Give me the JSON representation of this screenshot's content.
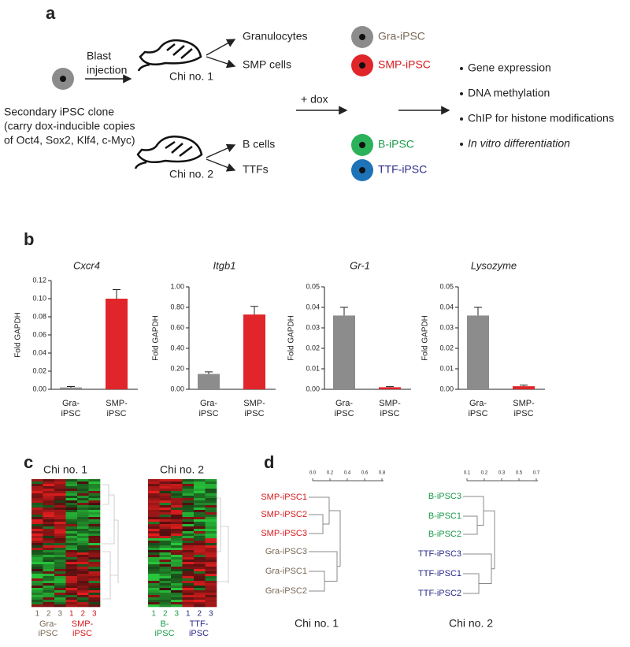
{
  "panel_a": {
    "label": "a",
    "clone_text": [
      "Secondary iPSC clone",
      "(carry dox-inducible copies",
      "of Oct4, Sox2, Klf4, c-Myc)"
    ],
    "injection": [
      "Blast",
      "injection"
    ],
    "chimeras": [
      {
        "name": "Chi no. 1",
        "cells": [
          "Granulocytes",
          "SMP cells"
        ],
        "ipsc": [
          "Gra-iPSC",
          "SMP-iPSC"
        ],
        "ipsc_colors": [
          "#8c8c8c",
          "#e0262a"
        ],
        "text_colors": [
          "#7a6a58",
          "#d7191c"
        ]
      },
      {
        "name": "Chi no. 2",
        "cells": [
          "B cells",
          "TTFs"
        ],
        "ipsc": [
          "B-iPSC",
          "TTF-iPSC"
        ],
        "ipsc_colors": [
          "#2bb15a",
          "#1e73b8"
        ],
        "text_colors": [
          "#1a9a4a",
          "#2a2a8a"
        ]
      }
    ],
    "treatment": "+ dox",
    "analyses": [
      "Gene expression",
      "DNA methylation",
      "ChIP for histone modifications",
      "In vitro differentiation"
    ]
  },
  "panel_b": {
    "label": "b"
  },
  "chart_data": [
    {
      "type": "bar",
      "title": "Cxcr4",
      "y_label": "Fold GAPDH",
      "categories": [
        "Gra- iPSC",
        "SMP- iPSC"
      ],
      "values": [
        0.002,
        0.1
      ],
      "errors": [
        0.001,
        0.01
      ],
      "colors": [
        "#8c8c8c",
        "#e0262a"
      ],
      "ylim": [
        0,
        0.12
      ],
      "yticks": [
        {
          "value": 0,
          "label": "0.00"
        },
        {
          "value": 0.02,
          "label": "0.02"
        },
        {
          "value": 0.04,
          "label": "0.04"
        },
        {
          "value": 0.06,
          "label": "0.06"
        },
        {
          "value": 0.08,
          "label": "0.08"
        },
        {
          "value": 0.1,
          "label": "0.10"
        },
        {
          "value": 0.12,
          "label": "0.12"
        }
      ]
    },
    {
      "type": "bar",
      "title": "Itgb1",
      "y_label": "Fold GAPDH",
      "categories": [
        "Gra- iPSC",
        "SMP- iPSC"
      ],
      "values": [
        0.15,
        0.73
      ],
      "errors": [
        0.02,
        0.08
      ],
      "colors": [
        "#8c8c8c",
        "#e0262a"
      ],
      "ylim": [
        0,
        1
      ],
      "yticks": [
        {
          "value": 0,
          "label": "0.00"
        },
        {
          "value": 0.2,
          "label": "0.20"
        },
        {
          "value": 0.4,
          "label": "0.40"
        },
        {
          "value": 0.6,
          "label": "0.60"
        },
        {
          "value": 0.8,
          "label": "0.80"
        },
        {
          "value": 1,
          "label": "1.00"
        }
      ]
    },
    {
      "type": "bar",
      "title": "Gr-1",
      "y_label": "Fold GAPDH",
      "categories": [
        "Gra- iPSC",
        "SMP- iPSC"
      ],
      "values": [
        0.036,
        0.001
      ],
      "errors": [
        0.004,
        0.0003
      ],
      "colors": [
        "#8c8c8c",
        "#e0262a"
      ],
      "ylim": [
        0,
        0.05
      ],
      "yticks": [
        {
          "value": 0,
          "label": "0.00"
        },
        {
          "value": 0.01,
          "label": "0.01"
        },
        {
          "value": 0.02,
          "label": "0.02"
        },
        {
          "value": 0.03,
          "label": "0.03"
        },
        {
          "value": 0.04,
          "label": "0.04"
        },
        {
          "value": 0.05,
          "label": "0.05"
        }
      ]
    },
    {
      "type": "bar",
      "title": "Lysozyme",
      "y_label": "Fold GAPDH",
      "categories": [
        "Gra- iPSC",
        "SMP- iPSC"
      ],
      "values": [
        0.036,
        0.0015
      ],
      "errors": [
        0.004,
        0.0005
      ],
      "colors": [
        "#8c8c8c",
        "#e0262a"
      ],
      "ylim": [
        0,
        0.05
      ],
      "yticks": [
        {
          "value": 0,
          "label": "0.00"
        },
        {
          "value": 0.01,
          "label": "0.01"
        },
        {
          "value": 0.02,
          "label": "0.02"
        },
        {
          "value": 0.03,
          "label": "0.03"
        },
        {
          "value": 0.04,
          "label": "0.04"
        },
        {
          "value": 0.05,
          "label": "0.05"
        }
      ]
    }
  ],
  "panel_c": {
    "label": "c",
    "heatmaps": [
      {
        "title": "Chi no. 1",
        "columns": [
          "1",
          "2",
          "3",
          "1",
          "2",
          "3"
        ],
        "groups": [
          "Gra- iPSC",
          "SMP- iPSC"
        ],
        "group_colors": [
          "#7a6a58",
          "#d7191c"
        ]
      },
      {
        "title": "Chi no. 2",
        "columns": [
          "1",
          "2",
          "3",
          "1",
          "2",
          "3"
        ],
        "groups": [
          "B- iPSC",
          "TTF- iPSC"
        ],
        "group_colors": [
          "#1a9a4a",
          "#2a2a8a"
        ]
      }
    ]
  },
  "panel_d": {
    "label": "d",
    "dendrograms": [
      {
        "title": "Chi no. 1",
        "scale": [
          "0.0",
          "0.2",
          "0.4",
          "0.6",
          "0.8"
        ],
        "leaves": [
          "SMP-iPSC1",
          "SMP-iPSC2",
          "SMP-iPSC3",
          "Gra-iPSC3",
          "Gra-iPSC1",
          "Gra-iPSC2"
        ],
        "leaf_colors": [
          "#d7191c",
          "#d7191c",
          "#d7191c",
          "#7a6a58",
          "#7a6a58",
          "#7a6a58"
        ]
      },
      {
        "title": "Chi no. 2",
        "scale": [
          "0.1",
          "0.2",
          "0.3",
          "0.5",
          "0.7"
        ],
        "leaves": [
          "B-iPSC3",
          "B-iPSC1",
          "B-iPSC2",
          "TTF-iPSC3",
          "TTF-iPSC1",
          "TTF-iPSC2"
        ],
        "leaf_colors": [
          "#1a9a4a",
          "#1a9a4a",
          "#1a9a4a",
          "#2a2a8a",
          "#2a2a8a",
          "#2a2a8a"
        ]
      }
    ]
  }
}
